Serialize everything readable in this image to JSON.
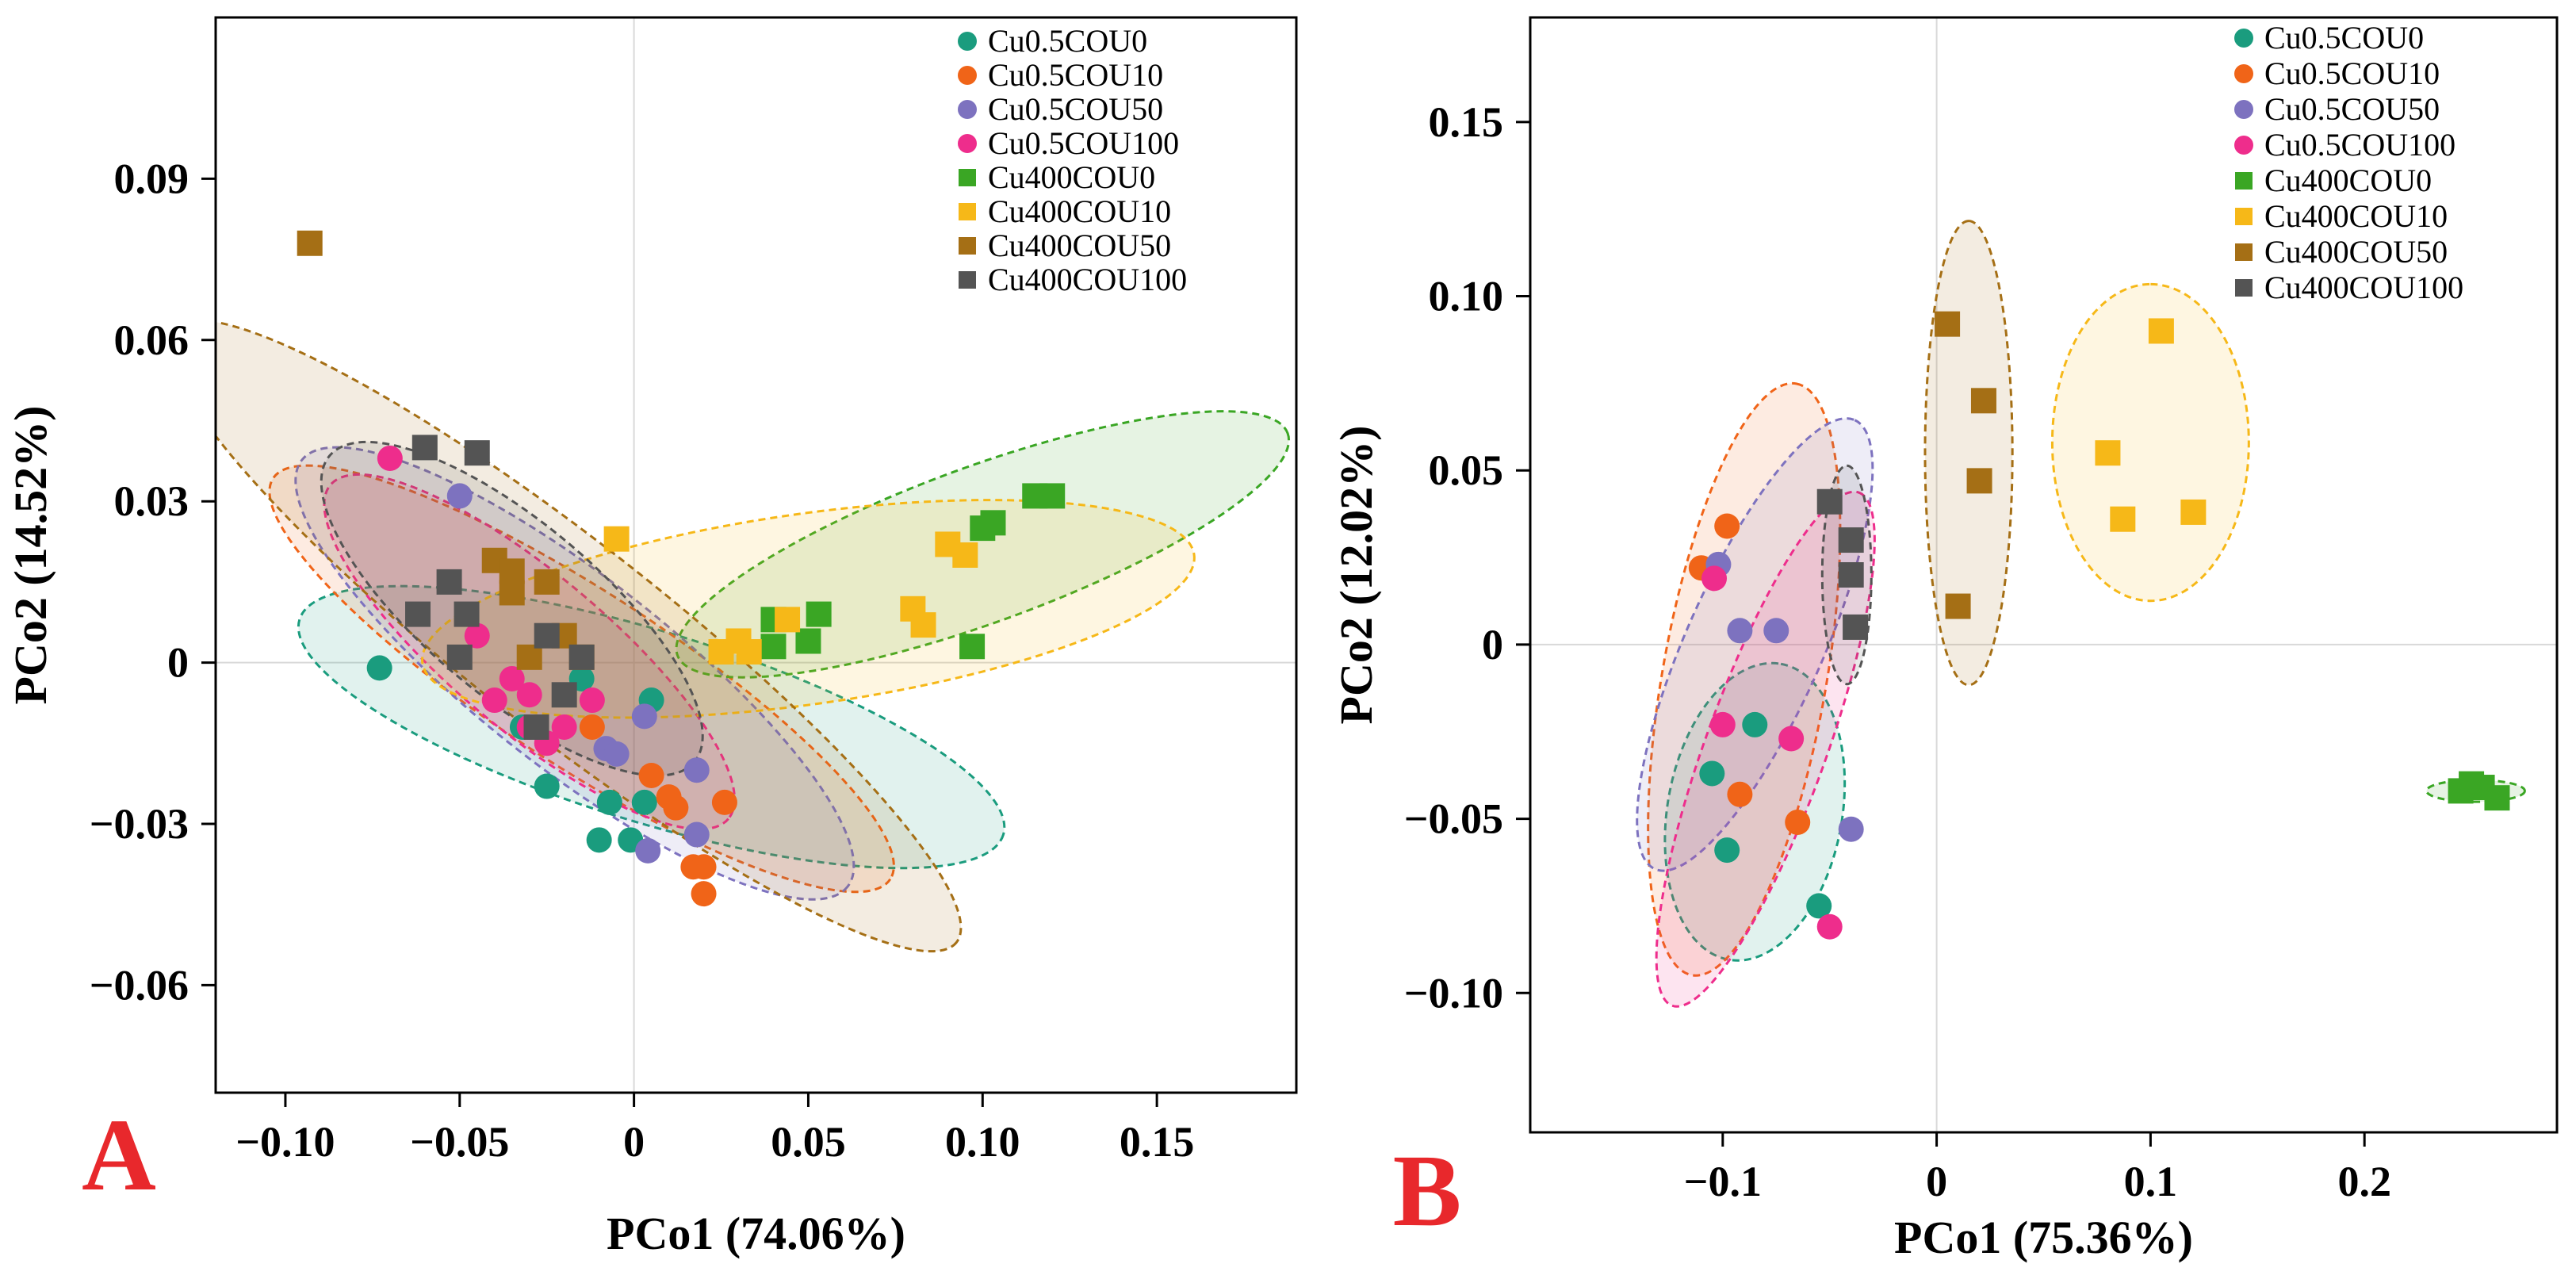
{
  "chart_data": [
    {
      "type": "scatter",
      "panel_label": "A",
      "xlabel": "PCo1 (74.06%)",
      "ylabel": "PCo2 (14.52%)",
      "xlim": [
        -0.12,
        0.19
      ],
      "ylim": [
        -0.08,
        0.12
      ],
      "xticks": [
        -0.1,
        -0.05,
        0,
        0.05,
        0.1,
        0.15
      ],
      "xtick_labels": [
        "−0.10",
        "−0.05",
        "0",
        "0.05",
        "0.10",
        "0.15"
      ],
      "yticks": [
        -0.06,
        -0.03,
        0,
        0.03,
        0.06,
        0.09
      ],
      "ytick_labels": [
        "−0.06",
        "−0.03",
        "0",
        "0.03",
        "0.06",
        "0.09"
      ],
      "zero_lines": true,
      "legend_position": "top-right",
      "series": [
        {
          "name": "Cu0.5COU0",
          "marker": "circle",
          "color": "#1a9c7e",
          "fill": "#1a9c7e",
          "x": [
            -0.073,
            -0.032,
            -0.025,
            -0.01,
            -0.007,
            -0.001,
            0.003,
            -0.015,
            0.005
          ],
          "y": [
            -0.001,
            -0.012,
            -0.023,
            -0.033,
            -0.026,
            -0.033,
            -0.026,
            -0.003,
            -0.007
          ],
          "ellipse": {
            "cx": 0.005,
            "cy": -0.012,
            "rx": 0.085,
            "ry": 0.022,
            "angle": -17
          }
        },
        {
          "name": "Cu0.5COU10",
          "marker": "circle",
          "color": "#f06418",
          "fill": "#f06418",
          "x": [
            0.005,
            0.012,
            0.02,
            0.026,
            0.017,
            0.02,
            0.01,
            -0.012
          ],
          "y": [
            -0.021,
            -0.027,
            -0.043,
            -0.026,
            -0.038,
            -0.038,
            -0.025,
            -0.012
          ],
          "ellipse": {
            "cx": -0.015,
            "cy": -0.003,
            "rx": 0.085,
            "ry": 0.02,
            "angle": -33
          }
        },
        {
          "name": "Cu0.5COU50",
          "marker": "circle",
          "color": "#7d72bf",
          "fill": "#7d72bf",
          "x": [
            -0.05,
            0.003,
            -0.008,
            -0.005,
            0.018,
            0.004,
            0.018
          ],
          "y": [
            0.031,
            -0.01,
            -0.016,
            -0.017,
            -0.02,
            -0.035,
            -0.032
          ],
          "ellipse": {
            "cx": -0.017,
            "cy": -0.002,
            "rx": 0.08,
            "ry": 0.022,
            "angle": -38
          }
        },
        {
          "name": "Cu0.5COU100",
          "marker": "circle",
          "color": "#ee2d8c",
          "fill": "#ee2d8c",
          "x": [
            -0.07,
            -0.045,
            -0.035,
            -0.04,
            -0.03,
            -0.025,
            -0.02,
            -0.012,
            -0.03
          ],
          "y": [
            0.038,
            0.005,
            -0.003,
            -0.007,
            -0.006,
            -0.015,
            -0.012,
            -0.007,
            -0.012
          ],
          "ellipse": {
            "cx": -0.03,
            "cy": 0.002,
            "rx": 0.06,
            "ry": 0.018,
            "angle": -40
          }
        },
        {
          "name": "Cu400COU0",
          "marker": "square",
          "color": "#3aa624",
          "fill": "#3aa624",
          "x": [
            0.04,
            0.04,
            0.05,
            0.053,
            0.1,
            0.103,
            0.115,
            0.12,
            0.097
          ],
          "y": [
            0.008,
            0.003,
            0.004,
            0.009,
            0.025,
            0.026,
            0.031,
            0.031,
            0.003
          ],
          "ellipse": {
            "cx": 0.1,
            "cy": 0.022,
            "rx": 0.075,
            "ry": 0.018,
            "angle": 20
          }
        },
        {
          "name": "Cu400COU10",
          "marker": "square",
          "color": "#f6b818",
          "fill": "#f6b818",
          "x": [
            -0.005,
            0.025,
            0.03,
            0.033,
            0.044,
            0.08,
            0.083,
            0.09,
            0.095
          ],
          "y": [
            0.023,
            0.002,
            0.004,
            0.002,
            0.008,
            0.01,
            0.007,
            0.022,
            0.02
          ],
          "ellipse": {
            "cx": 0.05,
            "cy": 0.01,
            "rx": 0.09,
            "ry": 0.022,
            "angle": 8
          }
        },
        {
          "name": "Cu400COU50",
          "marker": "square",
          "color": "#a56f15",
          "fill": "#a56f15",
          "x": [
            -0.093,
            -0.04,
            -0.035,
            -0.03,
            -0.025,
            -0.035,
            -0.02,
            -0.015
          ],
          "y": [
            0.078,
            0.019,
            0.013,
            0.001,
            0.015,
            0.017,
            0.005,
            0.001
          ],
          "ellipse": {
            "cx": -0.02,
            "cy": 0.005,
            "rx": 0.115,
            "ry": 0.022,
            "angle": -38
          }
        },
        {
          "name": "Cu400COU100",
          "marker": "square",
          "color": "#545454",
          "fill": "#545454",
          "x": [
            -0.06,
            -0.045,
            -0.053,
            -0.062,
            -0.048,
            -0.05,
            -0.025,
            -0.02,
            -0.028,
            -0.015
          ],
          "y": [
            0.04,
            0.039,
            0.015,
            0.009,
            0.009,
            0.001,
            0.005,
            -0.006,
            -0.012,
            0.001
          ],
          "ellipse": {
            "cx": -0.035,
            "cy": 0.01,
            "rx": 0.055,
            "ry": 0.02,
            "angle": -40
          }
        }
      ]
    },
    {
      "type": "scatter",
      "panel_label": "B",
      "xlabel": "PCo1 (75.36%)",
      "ylabel": "PCo2 (12.02%)",
      "xlim": [
        -0.19,
        0.29
      ],
      "ylim": [
        -0.14,
        0.18
      ],
      "xticks": [
        -0.1,
        0,
        0.1,
        0.2
      ],
      "xtick_labels": [
        "−0.1",
        "0",
        "0.1",
        "0.2"
      ],
      "yticks": [
        -0.1,
        -0.05,
        0,
        0.05,
        0.1,
        0.15
      ],
      "ytick_labels": [
        "−0.10",
        "−0.05",
        "0",
        "0.05",
        "0.10",
        "0.15"
      ],
      "zero_lines": true,
      "legend_position": "top-right",
      "series": [
        {
          "name": "Cu0.5COU0",
          "marker": "circle",
          "color": "#1a9c7e",
          "fill": "#1a9c7e",
          "x": [
            -0.105,
            -0.098,
            -0.085,
            -0.055
          ],
          "y": [
            -0.037,
            -0.059,
            -0.023,
            -0.075
          ],
          "ellipse": {
            "cx": -0.085,
            "cy": -0.048,
            "rx": 0.055,
            "ry": 0.032,
            "angle": 80
          }
        },
        {
          "name": "Cu0.5COU10",
          "marker": "circle",
          "color": "#f06418",
          "fill": "#f06418",
          "x": [
            -0.098,
            -0.11,
            -0.092,
            -0.065
          ],
          "y": [
            0.034,
            0.022,
            -0.043,
            -0.051
          ],
          "ellipse": {
            "cx": -0.09,
            "cy": -0.01,
            "rx": 0.11,
            "ry": 0.03,
            "angle": 80
          }
        },
        {
          "name": "Cu0.5COU50",
          "marker": "circle",
          "color": "#7d72bf",
          "fill": "#7d72bf",
          "x": [
            -0.102,
            -0.092,
            -0.075,
            -0.04
          ],
          "y": [
            0.023,
            0.004,
            0.004,
            -0.053
          ],
          "ellipse": {
            "cx": -0.085,
            "cy": 0.0,
            "rx": 0.09,
            "ry": 0.025,
            "angle": 66
          }
        },
        {
          "name": "Cu0.5COU100",
          "marker": "circle",
          "color": "#ee2d8c",
          "fill": "#ee2d8c",
          "x": [
            -0.104,
            -0.1,
            -0.068,
            -0.05
          ],
          "y": [
            0.019,
            -0.023,
            -0.027,
            -0.081
          ],
          "ellipse": {
            "cx": -0.08,
            "cy": -0.03,
            "rx": 0.1,
            "ry": 0.022,
            "angle": 70
          }
        },
        {
          "name": "Cu400COU0",
          "marker": "square",
          "color": "#3aa624",
          "fill": "#3aa624",
          "x": [
            0.245,
            0.25,
            0.255,
            0.262
          ],
          "y": [
            -0.042,
            -0.04,
            -0.041,
            -0.044
          ],
          "ellipse": {
            "cx": 0.252,
            "cy": -0.042,
            "rx": 0.018,
            "ry": 0.004,
            "angle": 0
          }
        },
        {
          "name": "Cu400COU10",
          "marker": "square",
          "color": "#f6b818",
          "fill": "#f6b818",
          "x": [
            0.08,
            0.087,
            0.105,
            0.12
          ],
          "y": [
            0.055,
            0.036,
            0.09,
            0.038
          ],
          "ellipse": {
            "cx": 0.1,
            "cy": 0.058,
            "rx": 0.058,
            "ry": 0.036,
            "angle": 90
          }
        },
        {
          "name": "Cu400COU50",
          "marker": "square",
          "color": "#a56f15",
          "fill": "#a56f15",
          "x": [
            0.005,
            0.022,
            0.02,
            0.01
          ],
          "y": [
            0.092,
            0.07,
            0.047,
            0.011
          ],
          "ellipse": {
            "cx": 0.015,
            "cy": 0.055,
            "rx": 0.085,
            "ry": 0.016,
            "angle": 90
          }
        },
        {
          "name": "Cu400COU100",
          "marker": "square",
          "color": "#545454",
          "fill": "#545454",
          "x": [
            -0.05,
            -0.04,
            -0.04,
            -0.038
          ],
          "y": [
            0.041,
            0.03,
            0.02,
            0.005
          ],
          "ellipse": {
            "cx": -0.042,
            "cy": 0.02,
            "rx": 0.04,
            "ry": 0.009,
            "angle": 90
          }
        }
      ]
    }
  ]
}
